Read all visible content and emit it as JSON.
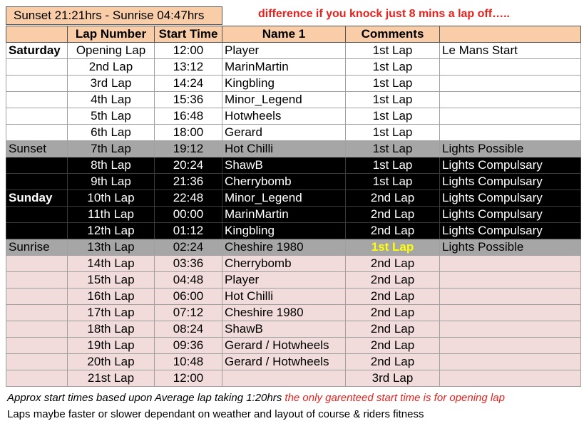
{
  "banner": "Sunset 21:21hrs  - Sunrise 04:47hrs",
  "title": "difference if you knock just 8 mins a lap off…..",
  "headers": [
    "",
    "Lap Number",
    "Start Time",
    "Name 1",
    "Comments",
    ""
  ],
  "rows": [
    {
      "day": "Saturday",
      "lap": "Opening Lap",
      "time": "12:00",
      "name": "Player",
      "comment": "1st Lap",
      "note": "Le Mans Start"
    },
    {
      "day": "",
      "lap": "2nd Lap",
      "time": "13:12",
      "name": "MarinMartin",
      "comment": "1st Lap",
      "note": ""
    },
    {
      "day": "",
      "lap": "3rd Lap",
      "time": "14:24",
      "name": "Kingbling",
      "comment": "1st Lap",
      "note": ""
    },
    {
      "day": "",
      "lap": "4th Lap",
      "time": "15:36",
      "name": "Minor_Legend",
      "comment": "1st Lap",
      "note": ""
    },
    {
      "day": "",
      "lap": "5th Lap",
      "time": "16:48",
      "name": "Hotwheels",
      "comment": "1st Lap",
      "note": ""
    },
    {
      "day": "",
      "lap": "6th Lap",
      "time": "18:00",
      "name": "Gerard",
      "comment": "1st Lap",
      "note": ""
    },
    {
      "day": "Sunset",
      "lap": "7th Lap",
      "time": "19:12",
      "name": "Hot Chilli",
      "comment": "1st Lap",
      "note": "Lights Possible"
    },
    {
      "day": "",
      "lap": "8th Lap",
      "time": "20:24",
      "name": "ShawB",
      "comment": "1st Lap",
      "note": "Lights Compulsary"
    },
    {
      "day": "",
      "lap": "9th Lap",
      "time": "21:36",
      "name": "Cherrybomb",
      "comment": "1st Lap",
      "note": "Lights Compulsary"
    },
    {
      "day": "Sunday",
      "lap": "10th Lap",
      "time": "22:48",
      "name": "Minor_Legend",
      "comment": "2nd Lap",
      "note": "Lights Compulsary"
    },
    {
      "day": "",
      "lap": "11th Lap",
      "time": "00:00",
      "name": "MarinMartin",
      "comment": "2nd Lap",
      "note": "Lights Compulsary"
    },
    {
      "day": "",
      "lap": "12th Lap",
      "time": "01:12",
      "name": "Kingbling",
      "comment": "2nd Lap",
      "note": "Lights Compulsary"
    },
    {
      "day": "Sunrise",
      "lap": "13th Lap",
      "time": "02:24",
      "name": "Cheshire 1980",
      "comment": "1st Lap",
      "note": "Lights Possible"
    },
    {
      "day": "",
      "lap": "14th Lap",
      "time": "03:36",
      "name": "Cherrybomb",
      "comment": "2nd Lap",
      "note": ""
    },
    {
      "day": "",
      "lap": "15th Lap",
      "time": "04:48",
      "name": "Player",
      "comment": "2nd Lap",
      "note": ""
    },
    {
      "day": "",
      "lap": "16th Lap",
      "time": "06:00",
      "name": "Hot Chilli",
      "comment": "2nd Lap",
      "note": ""
    },
    {
      "day": "",
      "lap": "17th Lap",
      "time": "07:12",
      "name": "Cheshire 1980",
      "comment": "2nd Lap",
      "note": ""
    },
    {
      "day": "",
      "lap": "18th Lap",
      "time": "08:24",
      "name": "ShawB",
      "comment": "2nd Lap",
      "note": ""
    },
    {
      "day": "",
      "lap": "19th Lap",
      "time": "09:36",
      "name": "Gerard / Hotwheels",
      "comment": "2nd Lap",
      "note": ""
    },
    {
      "day": "",
      "lap": "20th Lap",
      "time": "10:48",
      "name": "Gerard / Hotwheels",
      "comment": "2nd Lap",
      "note": ""
    },
    {
      "day": "",
      "lap": "21st Lap",
      "time": "12:00",
      "name": "",
      "comment": "3rd Lap",
      "note": ""
    }
  ],
  "footer": {
    "note1_italic": "Approx start times based upon Average lap taking 1:20hrs",
    "note1_red": "the only garenteed start time is for opening lap",
    "note2": "Laps maybe faster or slower dependant on weather and layout of course & riders fitness"
  },
  "colors": {
    "header_fill": "#f9cda8",
    "title_red": "#e8211c",
    "sunset_grey": "#a6a6a6",
    "night_black": "#000000",
    "morning_pink": "#f2dcdb",
    "highlight_yellow": "#ffff00"
  }
}
